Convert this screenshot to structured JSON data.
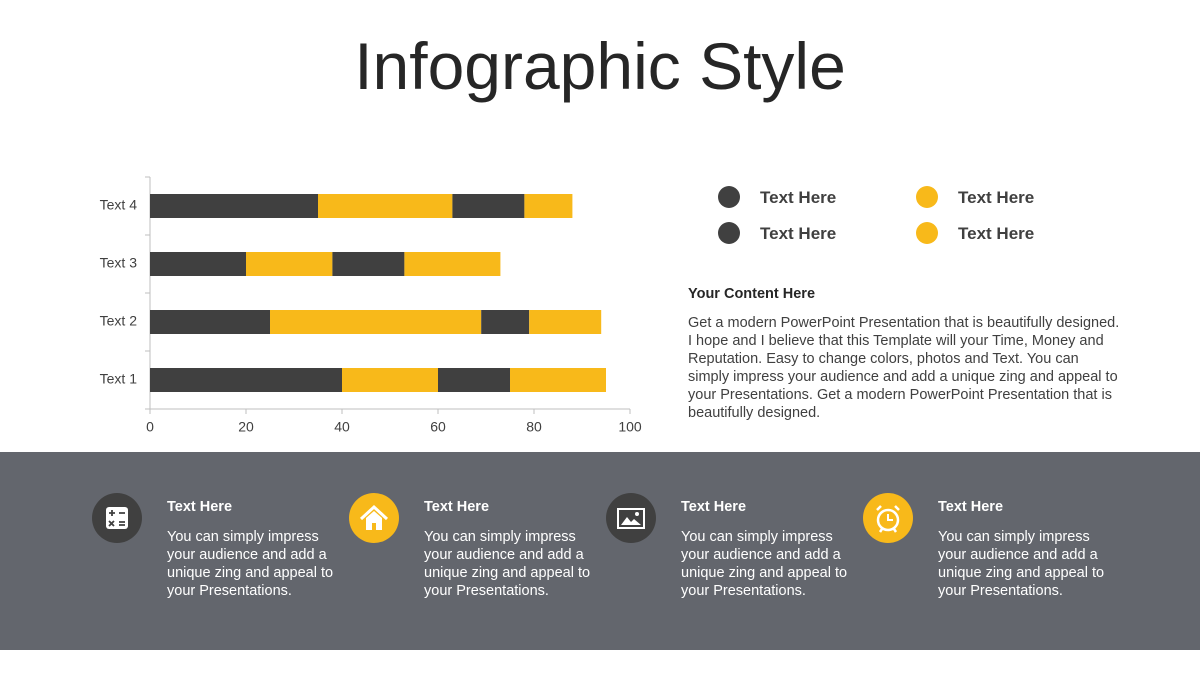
{
  "title": "Infographic Style",
  "chart_data": {
    "type": "bar",
    "orientation": "horizontal",
    "stacked": true,
    "categories": [
      "Text 1",
      "Text 2",
      "Text 3",
      "Text 4"
    ],
    "series": [
      {
        "name": "Text Here",
        "color": "#404040",
        "values": [
          40,
          25,
          20,
          35
        ]
      },
      {
        "name": "Text Here",
        "color": "#f8b91a",
        "values": [
          20,
          44,
          18,
          28
        ]
      },
      {
        "name": "Text Here",
        "color": "#404040",
        "values": [
          15,
          10,
          15,
          15
        ]
      },
      {
        "name": "Text Here",
        "color": "#f8b91a",
        "values": [
          20,
          15,
          20,
          10
        ]
      }
    ],
    "xlim": [
      0,
      100
    ],
    "xticks": [
      0,
      20,
      40,
      60,
      80,
      100
    ]
  },
  "content": {
    "heading": "Your Content Here",
    "body": "Get a modern PowerPoint  Presentation that is beautifully designed. I hope and I believe that this Template will your Time, Money and Reputation. Easy to change colors, photos and Text. You can simply impress your audience and add a unique zing and appeal to your Presentations. Get a modern PowerPoint Presentation that is beautifully designed."
  },
  "features": [
    {
      "title": "Text  Here",
      "body": "You can simply impress your audience and add a unique zing and appeal to your Presentations."
    },
    {
      "title": "Text  Here",
      "body": "You can simply impress your audience and add a unique zing and appeal to your Presentations."
    },
    {
      "title": "Text  Here",
      "body": "You can simply impress your audience and add a unique zing and appeal to your Presentations."
    },
    {
      "title": "Text  Here",
      "body": "You can simply impress your audience and add a unique zing and appeal to your Presentations."
    }
  ]
}
